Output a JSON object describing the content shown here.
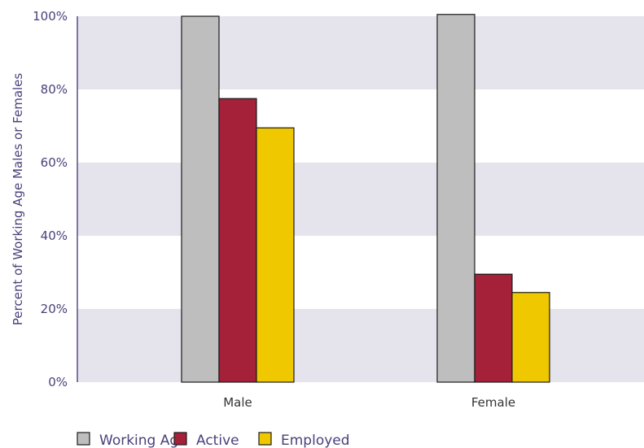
{
  "chart_data": {
    "type": "bar",
    "categories": [
      "Male",
      "Female"
    ],
    "series": [
      {
        "name": "Working Age",
        "values": [
          100,
          100.5
        ],
        "color": "#bebebe"
      },
      {
        "name": "Active",
        "values": [
          77.5,
          29.5
        ],
        "color": "#a52139"
      },
      {
        "name": "Employed",
        "values": [
          69.5,
          24.5
        ],
        "color": "#f0c800"
      }
    ],
    "title": "",
    "xlabel": "",
    "ylabel": "Percent of Working Age Males or Females",
    "ylim": [
      0,
      100
    ],
    "yticks": [
      "0%",
      "20%",
      "40%",
      "60%",
      "80%",
      "100%"
    ],
    "grid": "alternating horizontal bands",
    "band_color": "#e5e3ec",
    "legend_position": "bottom-left"
  }
}
